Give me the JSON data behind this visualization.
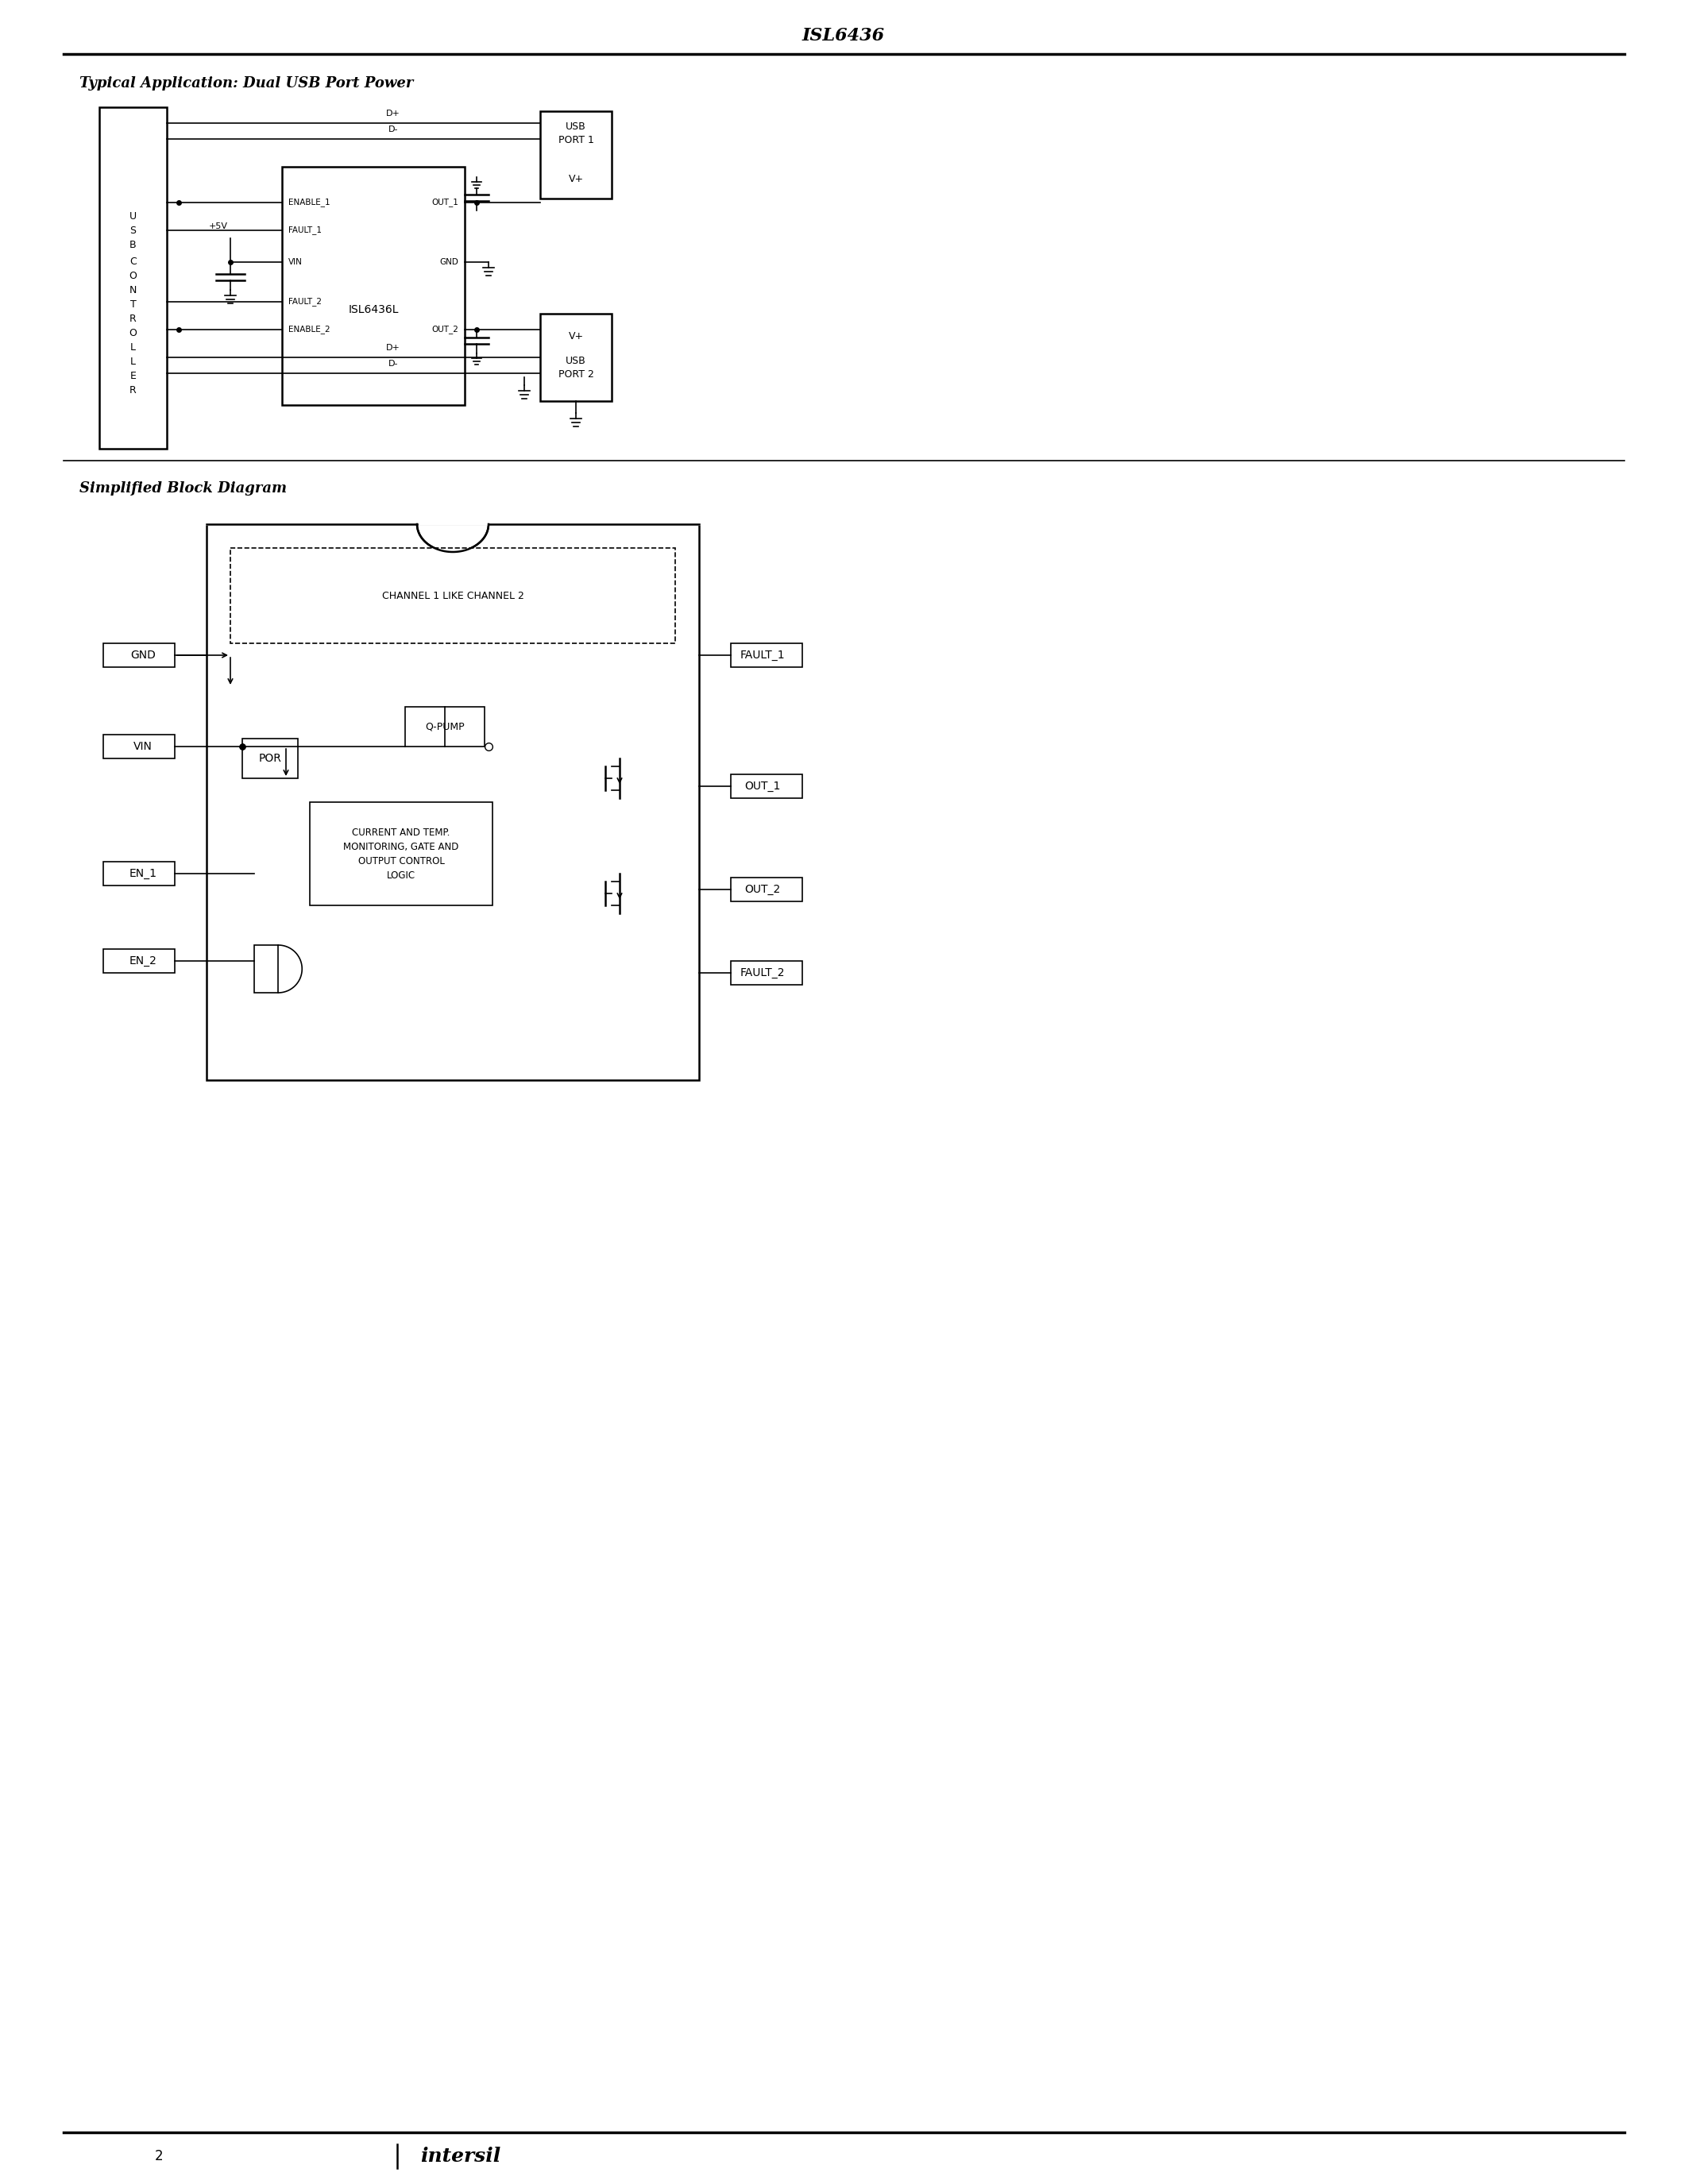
{
  "page_title": "ISL6436",
  "section1_title": "Typical Application: Dual USB Port Power",
  "section2_title": "Simplified Block Diagram",
  "footer_text": "2",
  "bg_color": "#ffffff",
  "line_color": "#000000",
  "text_color": "#000000"
}
